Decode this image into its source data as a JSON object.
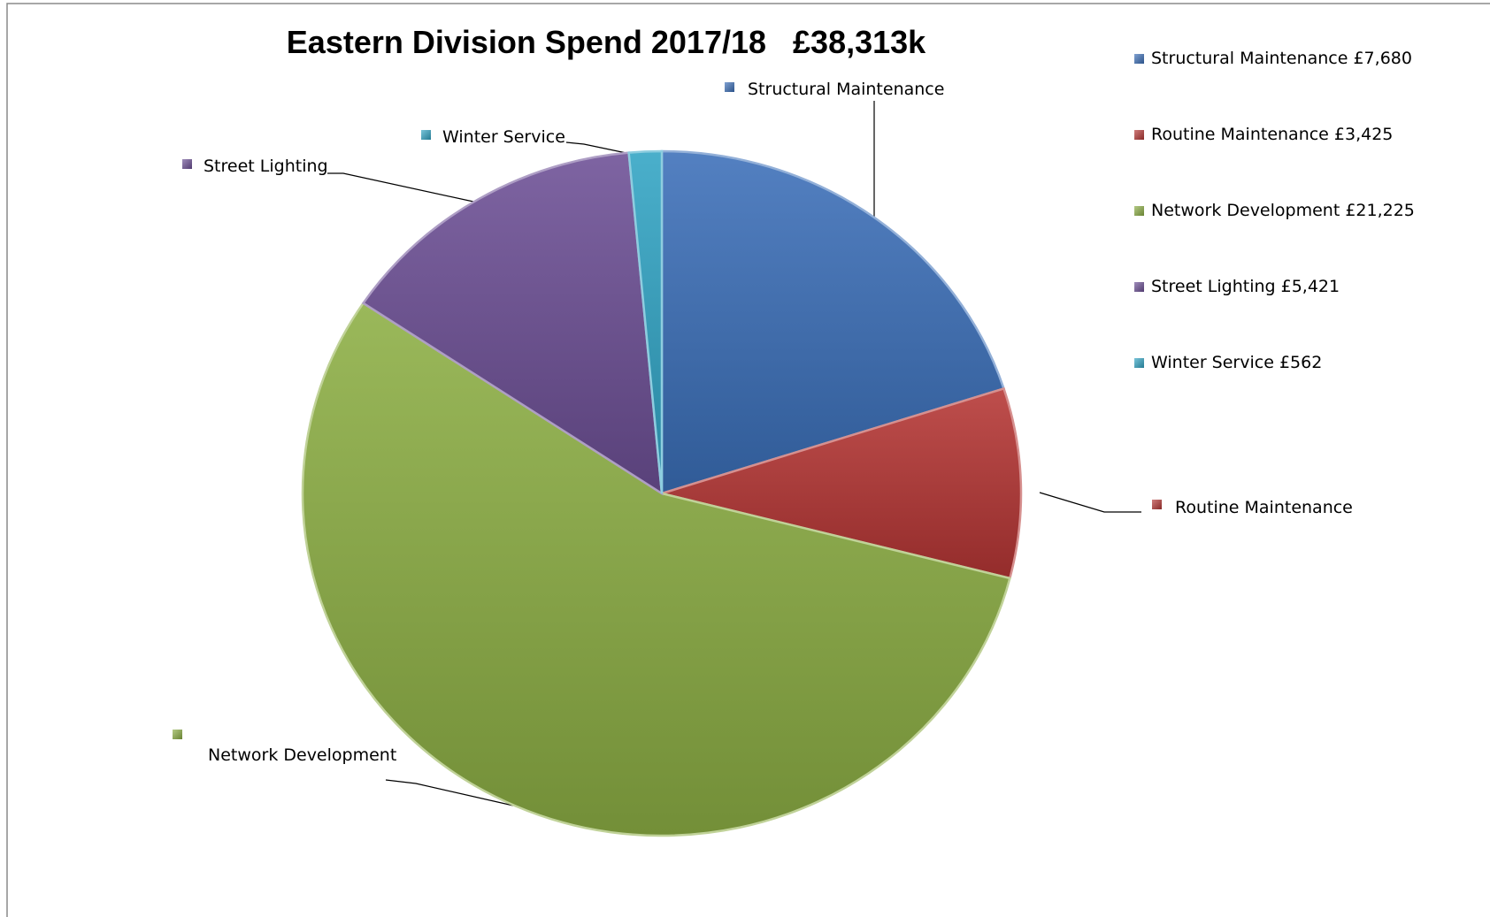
{
  "chart_data": {
    "type": "pie",
    "title": "Eastern Division Spend 2017/18   £38,313k",
    "slices": [
      {
        "name": "Structural Maintenance",
        "value": 7680,
        "color": "#3b6fb8",
        "legend": "Structural Maintenance £7,680"
      },
      {
        "name": "Routine Maintenance",
        "value": 3425,
        "color": "#b53634",
        "legend": "Routine Maintenance £3,425"
      },
      {
        "name": "Network Development",
        "value": 21225,
        "color": "#8cae44",
        "legend": "Network Development £21,225"
      },
      {
        "name": "Street Lighting",
        "value": 5421,
        "color": "#6c4f95",
        "legend": "Street Lighting £5,421"
      },
      {
        "name": "Winter Service",
        "value": 562,
        "color": "#31a4c4",
        "legend": "Winter Service £562"
      }
    ],
    "legend_position": "top-right",
    "grid": false
  }
}
